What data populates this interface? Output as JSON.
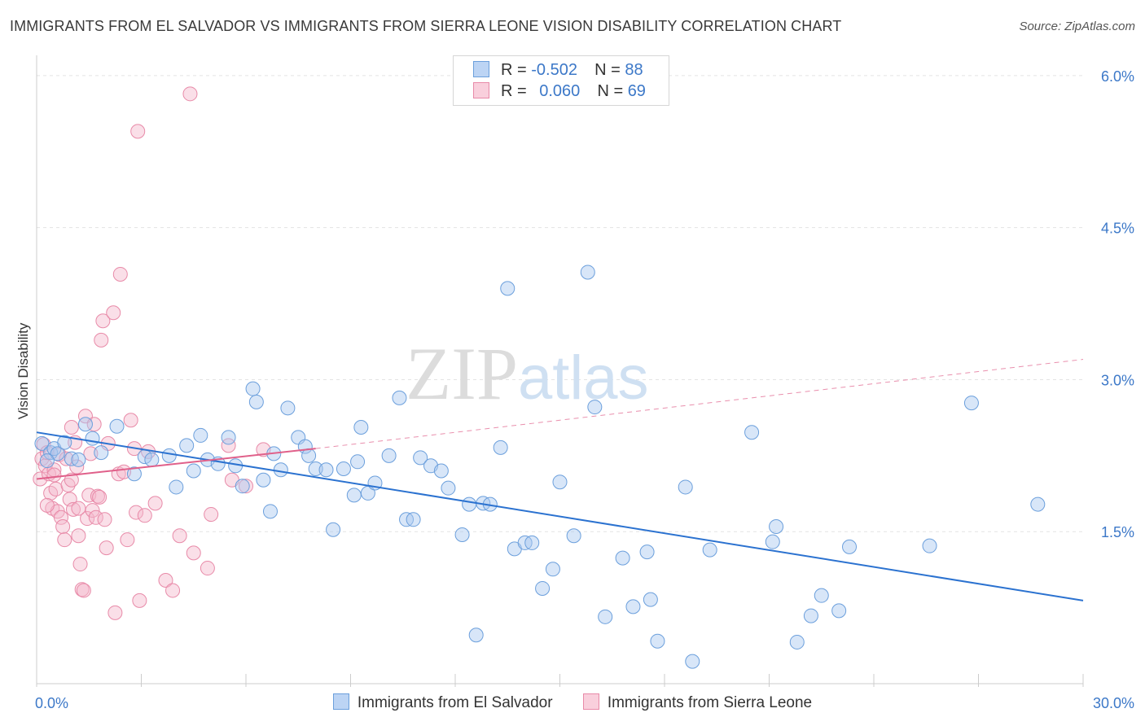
{
  "title": "IMMIGRANTS FROM EL SALVADOR VS IMMIGRANTS FROM SIERRA LEONE VISION DISABILITY CORRELATION CHART",
  "source": "Source: ZipAtlas.com",
  "watermark": {
    "zip": "ZIP",
    "atlas": "atlas"
  },
  "colors": {
    "blue_fill": "#a9c8ef",
    "blue_stroke": "#6b9fdc",
    "blue_line": "#2b72d0",
    "pink_fill": "#f5b8cc",
    "pink_stroke": "#e88aa8",
    "pink_line": "#e0608a",
    "tick_label": "#3c78c8",
    "grid": "#e3e3e3"
  },
  "legend": {
    "rows": [
      {
        "r_label": "R =",
        "r_value": "-0.502",
        "n_label": "N =",
        "n_value": "88"
      },
      {
        "r_label": "R =",
        "r_value": "0.060",
        "n_label": "N =",
        "n_value": "69"
      }
    ]
  },
  "chart_data": {
    "type": "scatter",
    "title": "IMMIGRANTS FROM EL SALVADOR VS IMMIGRANTS FROM SIERRA LEONE VISION DISABILITY CORRELATION CHART",
    "xlabel": "",
    "ylabel": "Vision Disability",
    "xlim": [
      0,
      30
    ],
    "ylim": [
      0,
      6.2
    ],
    "x_tick_labels": [
      "0.0%",
      "30.0%"
    ],
    "y_ticks": [
      1.5,
      3.0,
      4.5,
      6.0
    ],
    "y_tick_labels": [
      "1.5%",
      "3.0%",
      "4.5%",
      "6.0%"
    ],
    "grid": true,
    "legend_position": "top-center",
    "series": [
      {
        "name": "Immigrants from El Salvador",
        "color": "#a9c8ef",
        "trend": {
          "x": [
            0,
            30
          ],
          "y": [
            2.48,
            0.82
          ]
        },
        "points": [
          [
            0.15,
            2.37
          ],
          [
            0.4,
            2.28
          ],
          [
            0.5,
            2.32
          ],
          [
            0.6,
            2.27
          ],
          [
            0.8,
            2.38
          ],
          [
            1.0,
            2.22
          ],
          [
            1.2,
            2.21
          ],
          [
            1.4,
            2.56
          ],
          [
            1.6,
            2.42
          ],
          [
            1.85,
            2.28
          ],
          [
            2.3,
            2.54
          ],
          [
            2.8,
            2.07
          ],
          [
            3.1,
            2.24
          ],
          [
            3.3,
            2.21
          ],
          [
            3.8,
            2.25
          ],
          [
            4.0,
            1.94
          ],
          [
            4.3,
            2.35
          ],
          [
            4.5,
            2.1
          ],
          [
            4.7,
            2.45
          ],
          [
            4.9,
            2.21
          ],
          [
            5.2,
            2.17
          ],
          [
            5.5,
            2.43
          ],
          [
            5.7,
            2.15
          ],
          [
            5.9,
            1.95
          ],
          [
            6.2,
            2.91
          ],
          [
            6.3,
            2.78
          ],
          [
            6.5,
            2.01
          ],
          [
            6.7,
            1.7
          ],
          [
            6.8,
            2.27
          ],
          [
            7.0,
            2.11
          ],
          [
            7.2,
            2.72
          ],
          [
            7.5,
            2.43
          ],
          [
            7.7,
            2.34
          ],
          [
            7.8,
            2.25
          ],
          [
            8.0,
            2.12
          ],
          [
            8.3,
            2.11
          ],
          [
            8.5,
            1.52
          ],
          [
            8.8,
            2.12
          ],
          [
            9.1,
            1.86
          ],
          [
            9.2,
            2.19
          ],
          [
            9.3,
            2.53
          ],
          [
            9.5,
            1.88
          ],
          [
            9.7,
            1.98
          ],
          [
            10.1,
            2.25
          ],
          [
            10.4,
            2.82
          ],
          [
            10.6,
            1.62
          ],
          [
            10.8,
            1.62
          ],
          [
            11.0,
            2.23
          ],
          [
            11.3,
            2.15
          ],
          [
            11.6,
            2.1
          ],
          [
            11.8,
            1.93
          ],
          [
            12.2,
            1.47
          ],
          [
            12.4,
            1.77
          ],
          [
            12.6,
            0.48
          ],
          [
            12.8,
            1.78
          ],
          [
            13.0,
            1.77
          ],
          [
            13.3,
            2.33
          ],
          [
            13.5,
            3.9
          ],
          [
            13.7,
            1.33
          ],
          [
            14.0,
            1.39
          ],
          [
            14.2,
            1.39
          ],
          [
            14.5,
            0.94
          ],
          [
            14.8,
            1.13
          ],
          [
            15.0,
            1.99
          ],
          [
            15.4,
            1.46
          ],
          [
            15.8,
            4.06
          ],
          [
            16.0,
            2.73
          ],
          [
            16.3,
            0.66
          ],
          [
            16.8,
            1.24
          ],
          [
            17.1,
            0.76
          ],
          [
            17.5,
            1.3
          ],
          [
            17.6,
            0.83
          ],
          [
            17.8,
            0.42
          ],
          [
            18.6,
            1.94
          ],
          [
            18.8,
            0.22
          ],
          [
            19.3,
            1.32
          ],
          [
            20.5,
            2.48
          ],
          [
            21.1,
            1.4
          ],
          [
            21.2,
            1.55
          ],
          [
            21.8,
            0.41
          ],
          [
            22.2,
            0.67
          ],
          [
            22.5,
            0.87
          ],
          [
            23.0,
            0.72
          ],
          [
            23.3,
            1.35
          ],
          [
            25.6,
            1.36
          ],
          [
            26.8,
            2.77
          ],
          [
            28.7,
            1.77
          ],
          [
            0.3,
            2.2
          ]
        ]
      },
      {
        "name": "Immigrants from Sierra Leone",
        "color": "#f5b8cc",
        "trend": {
          "x": [
            0,
            8.0
          ],
          "y": [
            2.02,
            2.32
          ],
          "dashed_to": [
            30,
            3.2
          ]
        },
        "points": [
          [
            0.1,
            2.02
          ],
          [
            0.15,
            2.22
          ],
          [
            0.2,
            2.36
          ],
          [
            0.25,
            2.15
          ],
          [
            0.3,
            2.28
          ],
          [
            0.35,
            2.07
          ],
          [
            0.4,
            1.88
          ],
          [
            0.45,
            1.73
          ],
          [
            0.5,
            2.11
          ],
          [
            0.55,
            1.92
          ],
          [
            0.6,
            1.7
          ],
          [
            0.65,
            2.26
          ],
          [
            0.7,
            1.64
          ],
          [
            0.75,
            1.55
          ],
          [
            0.8,
            1.42
          ],
          [
            0.85,
            2.22
          ],
          [
            0.9,
            1.96
          ],
          [
            0.95,
            1.82
          ],
          [
            1.0,
            2.53
          ],
          [
            1.05,
            1.72
          ],
          [
            1.1,
            2.38
          ],
          [
            1.15,
            2.14
          ],
          [
            1.2,
            1.46
          ],
          [
            1.25,
            1.18
          ],
          [
            1.3,
            0.93
          ],
          [
            1.35,
            0.92
          ],
          [
            1.4,
            2.64
          ],
          [
            1.45,
            1.63
          ],
          [
            1.5,
            1.86
          ],
          [
            1.55,
            2.27
          ],
          [
            1.6,
            1.71
          ],
          [
            1.65,
            2.56
          ],
          [
            1.7,
            1.64
          ],
          [
            1.75,
            1.85
          ],
          [
            1.8,
            1.84
          ],
          [
            1.85,
            3.39
          ],
          [
            1.9,
            3.58
          ],
          [
            1.95,
            1.62
          ],
          [
            2.0,
            1.34
          ],
          [
            2.05,
            2.37
          ],
          [
            2.2,
            3.66
          ],
          [
            2.25,
            0.7
          ],
          [
            2.35,
            2.07
          ],
          [
            2.4,
            4.04
          ],
          [
            2.5,
            2.09
          ],
          [
            2.6,
            1.42
          ],
          [
            2.7,
            2.6
          ],
          [
            2.8,
            2.32
          ],
          [
            2.85,
            1.69
          ],
          [
            2.9,
            5.45
          ],
          [
            2.95,
            0.82
          ],
          [
            3.1,
            1.66
          ],
          [
            3.2,
            2.29
          ],
          [
            3.4,
            1.78
          ],
          [
            3.7,
            1.02
          ],
          [
            3.9,
            0.92
          ],
          [
            4.1,
            1.46
          ],
          [
            4.4,
            5.82
          ],
          [
            4.5,
            1.29
          ],
          [
            4.9,
            1.14
          ],
          [
            5.0,
            1.67
          ],
          [
            5.5,
            2.35
          ],
          [
            5.6,
            2.01
          ],
          [
            6.0,
            1.95
          ],
          [
            6.5,
            2.31
          ],
          [
            0.5,
            2.06
          ],
          [
            1.0,
            2.01
          ],
          [
            0.3,
            1.76
          ],
          [
            1.2,
            1.73
          ]
        ]
      }
    ]
  }
}
